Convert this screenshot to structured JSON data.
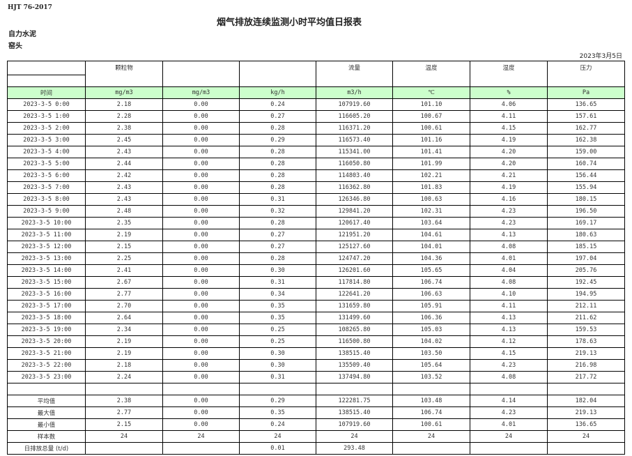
{
  "header": {
    "standard": "HJT  76-2017",
    "title": "烟气排放连续监测小时平均值日报表",
    "company": "自力水泥",
    "site": "窑头",
    "date": "2023年3月5日"
  },
  "columns": [
    "",
    "颗粒物",
    "",
    "",
    "流量",
    "温度",
    "湿度",
    "压力"
  ],
  "units": [
    "时间",
    "mg/m3",
    "mg/m3",
    "kg/h",
    "m3/h",
    "℃",
    "%",
    "Pa"
  ],
  "rows": [
    [
      "2023-3-5 0:00",
      "2.18",
      "0.00",
      "0.24",
      "107919.60",
      "101.10",
      "4.06",
      "136.65"
    ],
    [
      "2023-3-5 1:00",
      "2.28",
      "0.00",
      "0.27",
      "116605.20",
      "100.67",
      "4.11",
      "157.61"
    ],
    [
      "2023-3-5 2:00",
      "2.38",
      "0.00",
      "0.28",
      "116371.20",
      "100.61",
      "4.15",
      "162.77"
    ],
    [
      "2023-3-5 3:00",
      "2.45",
      "0.00",
      "0.29",
      "116573.40",
      "101.16",
      "4.19",
      "162.38"
    ],
    [
      "2023-3-5 4:00",
      "2.43",
      "0.00",
      "0.28",
      "115341.00",
      "101.41",
      "4.20",
      "159.00"
    ],
    [
      "2023-3-5 5:00",
      "2.44",
      "0.00",
      "0.28",
      "116050.80",
      "101.99",
      "4.20",
      "160.74"
    ],
    [
      "2023-3-5 6:00",
      "2.42",
      "0.00",
      "0.28",
      "114803.40",
      "102.21",
      "4.21",
      "156.44"
    ],
    [
      "2023-3-5 7:00",
      "2.43",
      "0.00",
      "0.28",
      "116362.80",
      "101.83",
      "4.19",
      "155.94"
    ],
    [
      "2023-3-5 8:00",
      "2.43",
      "0.00",
      "0.31",
      "126346.80",
      "100.63",
      "4.16",
      "180.15"
    ],
    [
      "2023-3-5 9:00",
      "2.48",
      "0.00",
      "0.32",
      "129841.20",
      "102.31",
      "4.23",
      "196.50"
    ],
    [
      "2023-3-5 10:00",
      "2.35",
      "0.00",
      "0.28",
      "120617.40",
      "103.64",
      "4.23",
      "169.17"
    ],
    [
      "2023-3-5 11:00",
      "2.19",
      "0.00",
      "0.27",
      "121951.20",
      "104.61",
      "4.13",
      "180.63"
    ],
    [
      "2023-3-5 12:00",
      "2.15",
      "0.00",
      "0.27",
      "125127.60",
      "104.01",
      "4.08",
      "185.15"
    ],
    [
      "2023-3-5 13:00",
      "2.25",
      "0.00",
      "0.28",
      "124747.20",
      "104.36",
      "4.01",
      "197.04"
    ],
    [
      "2023-3-5 14:00",
      "2.41",
      "0.00",
      "0.30",
      "126201.60",
      "105.65",
      "4.04",
      "205.76"
    ],
    [
      "2023-3-5 15:00",
      "2.67",
      "0.00",
      "0.31",
      "117814.80",
      "106.74",
      "4.08",
      "192.45"
    ],
    [
      "2023-3-5 16:00",
      "2.77",
      "0.00",
      "0.34",
      "122641.20",
      "106.63",
      "4.10",
      "194.95"
    ],
    [
      "2023-3-5 17:00",
      "2.70",
      "0.00",
      "0.35",
      "131659.80",
      "105.91",
      "4.11",
      "212.11"
    ],
    [
      "2023-3-5 18:00",
      "2.64",
      "0.00",
      "0.35",
      "131499.60",
      "106.36",
      "4.13",
      "211.62"
    ],
    [
      "2023-3-5 19:00",
      "2.34",
      "0.00",
      "0.25",
      "108265.80",
      "105.03",
      "4.13",
      "159.53"
    ],
    [
      "2023-3-5 20:00",
      "2.19",
      "0.00",
      "0.25",
      "116500.80",
      "104.02",
      "4.12",
      "178.63"
    ],
    [
      "2023-3-5 21:00",
      "2.19",
      "0.00",
      "0.30",
      "138515.40",
      "103.50",
      "4.15",
      "219.13"
    ],
    [
      "2023-3-5 22:00",
      "2.18",
      "0.00",
      "0.30",
      "135509.40",
      "105.64",
      "4.23",
      "216.98"
    ],
    [
      "2023-3-5 23:00",
      "2.24",
      "0.00",
      "0.31",
      "137494.80",
      "103.52",
      "4.08",
      "217.72"
    ]
  ],
  "summary": [
    [
      "平均值",
      "2.38",
      "0.00",
      "0.29",
      "122281.75",
      "103.48",
      "4.14",
      "182.04"
    ],
    [
      "最大值",
      "2.77",
      "0.00",
      "0.35",
      "138515.40",
      "106.74",
      "4.23",
      "219.13"
    ],
    [
      "最小值",
      "2.15",
      "0.00",
      "0.24",
      "107919.60",
      "100.61",
      "4.01",
      "136.65"
    ],
    [
      "样本数",
      "24",
      "24",
      "24",
      "24",
      "24",
      "24",
      "24"
    ],
    [
      "日排放总量 (t/d)",
      "",
      "",
      "0.01",
      "293.48",
      "",
      "",
      ""
    ]
  ],
  "colors": {
    "units_row_bg": "#ccffcc"
  }
}
